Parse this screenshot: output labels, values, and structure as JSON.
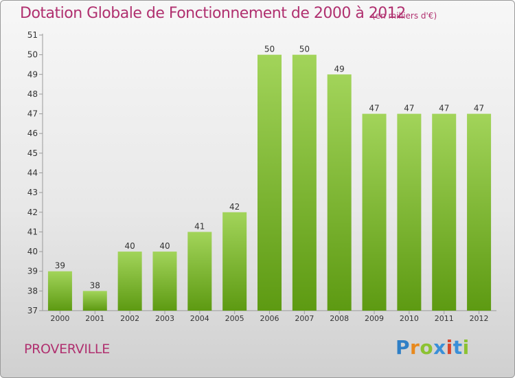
{
  "header": {
    "title": "Dotation Globale de Fonctionnement de 2000 à 2012",
    "subtitle": "(en milliers d'€)"
  },
  "footer": {
    "commune": "PROVERVILLE",
    "brand": "Proxiti",
    "brand_colors": [
      "#2f7fc6",
      "#e8891d",
      "#8cc232",
      "#3a8fd8",
      "#d9462c",
      "#3a8fd8",
      "#8cc232"
    ]
  },
  "colors": {
    "title": "#b0306f",
    "bar_light": "#a2d45a",
    "bar_dark": "#5d9a12",
    "axis": "#9a9a9a"
  },
  "chart_data": {
    "type": "bar",
    "categories": [
      "2000",
      "2001",
      "2002",
      "2003",
      "2004",
      "2005",
      "2006",
      "2007",
      "2008",
      "2009",
      "2010",
      "2011",
      "2012"
    ],
    "values": [
      39,
      38,
      40,
      40,
      41,
      42,
      50,
      50,
      49,
      47,
      47,
      47,
      47
    ],
    "data_labels": [
      "39",
      "38",
      "40",
      "40",
      "41",
      "42",
      "50",
      "50",
      "49",
      "47",
      "47",
      "47",
      "47"
    ],
    "yticks": [
      "37",
      "38",
      "39",
      "40",
      "41",
      "42",
      "43",
      "44",
      "45",
      "46",
      "47",
      "48",
      "49",
      "50",
      "51"
    ],
    "ylim": [
      37,
      51
    ],
    "title": "Dotation Globale de Fonctionnement de 2000 à 2012",
    "ylabel": "",
    "xlabel": "",
    "grid": false
  }
}
